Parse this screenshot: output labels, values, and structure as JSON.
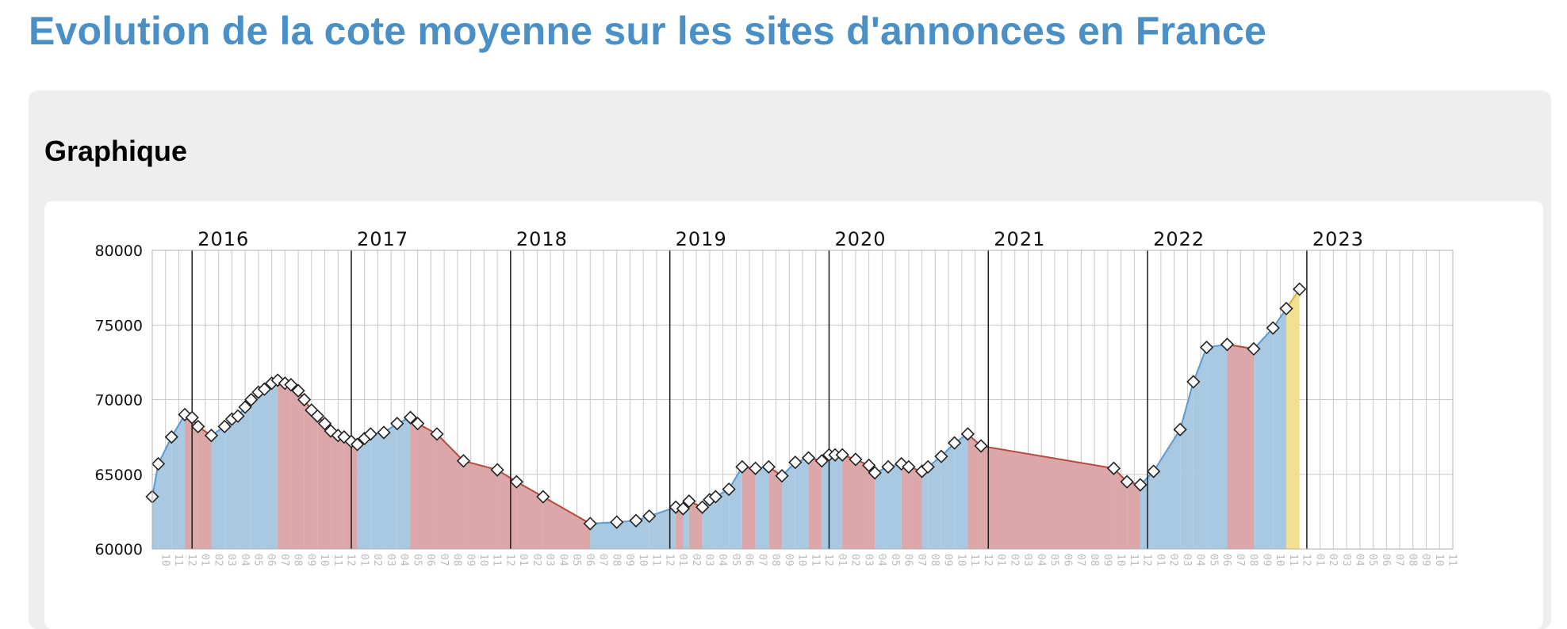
{
  "page": {
    "title": "Evolution de la cote moyenne sur les sites d'annonces en France",
    "section_title": "Graphique"
  },
  "colors": {
    "title": "#4a90c6",
    "rising_fill": "#a9c9e2",
    "falling_fill": "#dba7a8",
    "current_fill": "#f1df92",
    "rising_line": "#5b9bd0",
    "falling_line": "#b84a3c",
    "current_line": "#d2b238"
  },
  "chart_data": {
    "type": "area",
    "title": "",
    "xlabel": "",
    "ylabel": "",
    "ylim": [
      60000,
      80000
    ],
    "y_ticks": [
      60000,
      65000,
      70000,
      75000,
      80000
    ],
    "grid": true,
    "x_start": "2015-10",
    "x_months": [
      "10",
      "11",
      "12",
      "01",
      "02",
      "03",
      "04",
      "05",
      "06",
      "07",
      "08",
      "09",
      "10",
      "11",
      "12",
      "01",
      "02",
      "03",
      "04",
      "05",
      "06",
      "07",
      "08",
      "09",
      "10",
      "11",
      "12",
      "01",
      "02",
      "03",
      "04",
      "05",
      "06",
      "07",
      "08",
      "09",
      "10",
      "11",
      "12",
      "01",
      "02",
      "03",
      "04",
      "05",
      "06",
      "07",
      "08",
      "09",
      "10",
      "11",
      "12",
      "01",
      "02",
      "03",
      "04",
      "05",
      "06",
      "07",
      "08",
      "09",
      "10",
      "11",
      "12",
      "01",
      "02",
      "03",
      "04",
      "05",
      "06",
      "07",
      "08",
      "09",
      "10",
      "11",
      "12",
      "01",
      "02",
      "03",
      "04",
      "05",
      "06",
      "07",
      "08",
      "09",
      "10",
      "11",
      "12",
      "01",
      "02",
      "03",
      "04",
      "05",
      "06",
      "07",
      "08",
      "09",
      "10",
      "11"
    ],
    "years": [
      {
        "label": "2016",
        "month": "2016-01"
      },
      {
        "label": "2017",
        "month": "2017-01"
      },
      {
        "label": "2018",
        "month": "2018-01"
      },
      {
        "label": "2019",
        "month": "2019-01"
      },
      {
        "label": "2020",
        "month": "2020-01"
      },
      {
        "label": "2021",
        "month": "2021-01"
      },
      {
        "label": "2022",
        "month": "2022-01"
      },
      {
        "label": "2023",
        "month": "2023-01"
      }
    ],
    "points": [
      {
        "x": "2015-10-01",
        "y": 63500
      },
      {
        "x": "2015-10-15",
        "y": 65700
      },
      {
        "x": "2015-11-15",
        "y": 67500
      },
      {
        "x": "2015-12-15",
        "y": 69000
      },
      {
        "x": "2016-01-01",
        "y": 68800
      },
      {
        "x": "2016-01-15",
        "y": 68200
      },
      {
        "x": "2016-02-15",
        "y": 67600
      },
      {
        "x": "2016-03-15",
        "y": 68200
      },
      {
        "x": "2016-04-01",
        "y": 68700
      },
      {
        "x": "2016-04-15",
        "y": 68900
      },
      {
        "x": "2016-05-01",
        "y": 69500
      },
      {
        "x": "2016-05-15",
        "y": 70000
      },
      {
        "x": "2016-06-01",
        "y": 70500
      },
      {
        "x": "2016-06-15",
        "y": 70700
      },
      {
        "x": "2016-07-01",
        "y": 71100
      },
      {
        "x": "2016-07-15",
        "y": 71300
      },
      {
        "x": "2016-08-01",
        "y": 71100
      },
      {
        "x": "2016-08-15",
        "y": 71000
      },
      {
        "x": "2016-09-01",
        "y": 70600
      },
      {
        "x": "2016-09-15",
        "y": 70000
      },
      {
        "x": "2016-10-01",
        "y": 69300
      },
      {
        "x": "2016-10-15",
        "y": 68900
      },
      {
        "x": "2016-11-01",
        "y": 68400
      },
      {
        "x": "2016-11-15",
        "y": 67900
      },
      {
        "x": "2016-12-01",
        "y": 67600
      },
      {
        "x": "2016-12-15",
        "y": 67500
      },
      {
        "x": "2017-01-01",
        "y": 67200
      },
      {
        "x": "2017-01-15",
        "y": 67000
      },
      {
        "x": "2017-02-01",
        "y": 67400
      },
      {
        "x": "2017-02-15",
        "y": 67700
      },
      {
        "x": "2017-03-15",
        "y": 67800
      },
      {
        "x": "2017-04-15",
        "y": 68400
      },
      {
        "x": "2017-05-15",
        "y": 68800
      },
      {
        "x": "2017-06-01",
        "y": 68400
      },
      {
        "x": "2017-07-15",
        "y": 67700
      },
      {
        "x": "2017-09-15",
        "y": 65900
      },
      {
        "x": "2017-12-01",
        "y": 65300
      },
      {
        "x": "2018-01-15",
        "y": 64500
      },
      {
        "x": "2018-03-15",
        "y": 63500
      },
      {
        "x": "2018-07-01",
        "y": 61700
      },
      {
        "x": "2018-09-01",
        "y": 61800
      },
      {
        "x": "2018-10-15",
        "y": 61900
      },
      {
        "x": "2018-11-15",
        "y": 62200
      },
      {
        "x": "2019-01-15",
        "y": 62800
      },
      {
        "x": "2019-02-01",
        "y": 62700
      },
      {
        "x": "2019-02-15",
        "y": 63200
      },
      {
        "x": "2019-03-15",
        "y": 62800
      },
      {
        "x": "2019-04-01",
        "y": 63300
      },
      {
        "x": "2019-04-15",
        "y": 63500
      },
      {
        "x": "2019-05-15",
        "y": 64000
      },
      {
        "x": "2019-06-15",
        "y": 65500
      },
      {
        "x": "2019-07-15",
        "y": 65400
      },
      {
        "x": "2019-08-15",
        "y": 65500
      },
      {
        "x": "2019-09-15",
        "y": 64900
      },
      {
        "x": "2019-10-15",
        "y": 65800
      },
      {
        "x": "2019-11-15",
        "y": 66100
      },
      {
        "x": "2019-12-15",
        "y": 65900
      },
      {
        "x": "2020-01-01",
        "y": 66300
      },
      {
        "x": "2020-01-15",
        "y": 66300
      },
      {
        "x": "2020-02-01",
        "y": 66300
      },
      {
        "x": "2020-03-01",
        "y": 66000
      },
      {
        "x": "2020-04-01",
        "y": 65600
      },
      {
        "x": "2020-04-15",
        "y": 65100
      },
      {
        "x": "2020-05-15",
        "y": 65500
      },
      {
        "x": "2020-06-15",
        "y": 65700
      },
      {
        "x": "2020-07-01",
        "y": 65500
      },
      {
        "x": "2020-08-01",
        "y": 65200
      },
      {
        "x": "2020-08-15",
        "y": 65500
      },
      {
        "x": "2020-09-15",
        "y": 66200
      },
      {
        "x": "2020-10-15",
        "y": 67100
      },
      {
        "x": "2020-11-15",
        "y": 67700
      },
      {
        "x": "2020-12-15",
        "y": 66900
      },
      {
        "x": "2021-10-15",
        "y": 65400
      },
      {
        "x": "2021-11-15",
        "y": 64500
      },
      {
        "x": "2021-12-15",
        "y": 64300
      },
      {
        "x": "2022-01-15",
        "y": 65200
      },
      {
        "x": "2022-03-15",
        "y": 68000
      },
      {
        "x": "2022-04-15",
        "y": 71200
      },
      {
        "x": "2022-05-15",
        "y": 73500
      },
      {
        "x": "2022-07-01",
        "y": 73700
      },
      {
        "x": "2022-09-01",
        "y": 73400
      },
      {
        "x": "2022-10-15",
        "y": 74800
      },
      {
        "x": "2022-11-15",
        "y": 76100
      },
      {
        "x": "2022-12-15",
        "y": 77400
      }
    ]
  }
}
